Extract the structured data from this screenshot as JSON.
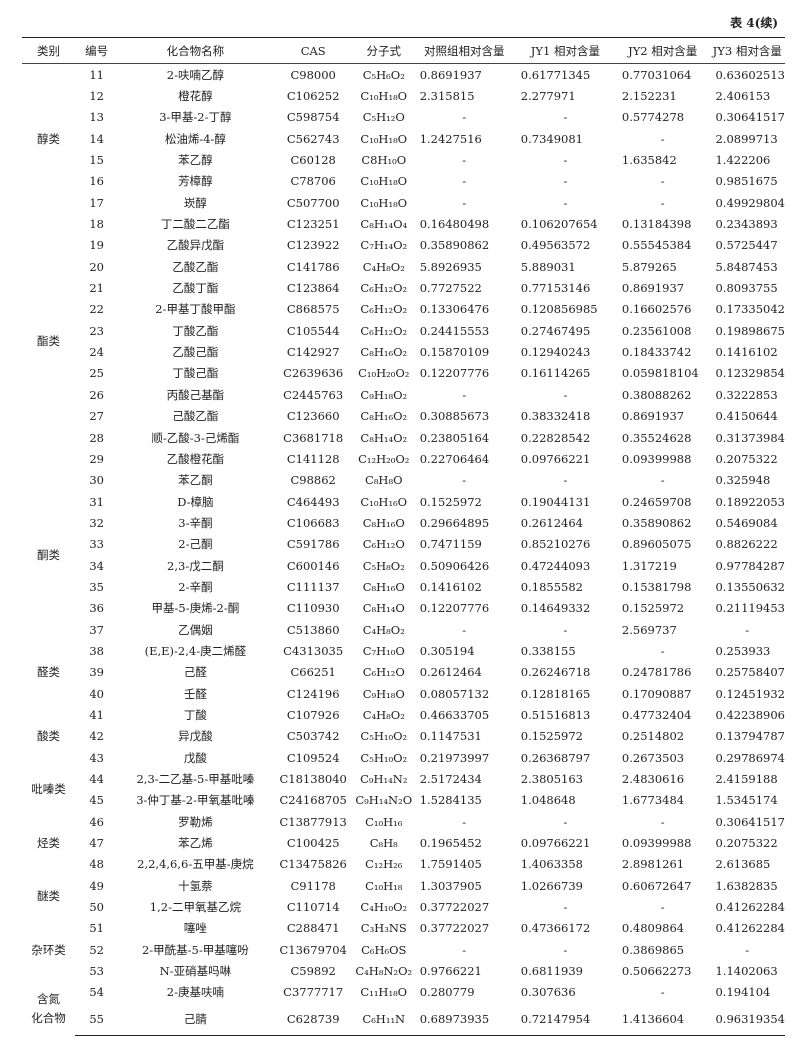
{
  "caption": "表 4(续)",
  "headers": [
    "类别",
    "编号",
    "化合物名称",
    "CAS",
    "分子式",
    "对照组相对含量",
    "JY1 相对含量",
    "JY2 相对含量",
    "JY3 相对含量"
  ],
  "categories": [
    {
      "label": "醇类",
      "rows": 7
    },
    {
      "label": "酯类",
      "rows": 12
    },
    {
      "label": "酮类",
      "rows": 8
    },
    {
      "label": "醛类",
      "rows": 3
    },
    {
      "label": "酸类",
      "rows": 3
    },
    {
      "label": "吡嗪类",
      "rows": 2
    },
    {
      "label": "烃类",
      "rows": 3
    },
    {
      "label": "醚类",
      "rows": 2
    },
    {
      "label": "杂环类",
      "rows": 3
    },
    {
      "label": "含氮\n化合物",
      "rows": 2
    }
  ],
  "rows": [
    [
      "11",
      "2-呋喃乙醇",
      "C98000",
      "C₅H₆O₂",
      "0.8691937",
      "0.61771345",
      "0.77031064",
      "0.63602513"
    ],
    [
      "12",
      "橙花醇",
      "C106252",
      "C₁₀H₁₈O",
      "2.315815",
      "2.277971",
      "2.152231",
      "2.406153"
    ],
    [
      "13",
      "3-甲基-2-丁醇",
      "C598754",
      "C₅H₁₂O",
      "-",
      "-",
      "0.5774278",
      "0.30641517"
    ],
    [
      "14",
      "松油烯-4-醇",
      "C562743",
      "C₁₀H₁₈O",
      "1.2427516",
      "0.7349081",
      "-",
      "2.0899713"
    ],
    [
      "15",
      "苯乙醇",
      "C60128",
      "C8H₁₀O",
      "-",
      "-",
      "1.635842",
      "1.422206"
    ],
    [
      "16",
      "芳樟醇",
      "C78706",
      "C₁₀H₁₈O",
      "-",
      "-",
      "-",
      "0.9851675"
    ],
    [
      "17",
      "崁醇",
      "C507700",
      "C₁₀H₁₈O",
      "-",
      "-",
      "-",
      "0.49929804"
    ],
    [
      "18",
      "丁二酸二乙酯",
      "C123251",
      "C₈H₁₄O₄",
      "0.16480498",
      "0.106207654",
      "0.13184398",
      "0.2343893"
    ],
    [
      "19",
      "乙酸异戊酯",
      "C123922",
      "C₇H₁₄O₂",
      "0.35890862",
      "0.49563572",
      "0.55545384",
      "0.5725447"
    ],
    [
      "20",
      "乙酸乙酯",
      "C141786",
      "C₄H₈O₂",
      "5.8926935",
      "5.889031",
      "5.879265",
      "5.8487453"
    ],
    [
      "21",
      "乙酸丁酯",
      "C123864",
      "C₆H₁₂O₂",
      "0.7727522",
      "0.77153146",
      "0.8691937",
      "0.8093755"
    ],
    [
      "22",
      "2-甲基丁酸甲酯",
      "C868575",
      "C₆H₁₂O₂",
      "0.13306476",
      "0.120856985",
      "0.16602576",
      "0.17335042"
    ],
    [
      "23",
      "丁酸乙酯",
      "C105544",
      "C₆H₁₂O₂",
      "0.24415553",
      "0.27467495",
      "0.23561008",
      "0.19898675"
    ],
    [
      "24",
      "乙酸己酯",
      "C142927",
      "C₈H₁₆O₂",
      "0.15870109",
      "0.12940243",
      "0.18433742",
      "0.1416102"
    ],
    [
      "25",
      "丁酸己酯",
      "C2639636",
      "C₁₀H₂₀O₂",
      "0.12207776",
      "0.16114265",
      "0.059818104",
      "0.12329854"
    ],
    [
      "26",
      "丙酸己基酯",
      "C2445763",
      "C₉H₁₈O₂",
      "-",
      "-",
      "0.38088262",
      "0.3222853"
    ],
    [
      "27",
      "己酸乙酯",
      "C123660",
      "C₈H₁₆O₂",
      "0.30885673",
      "0.38332418",
      "0.8691937",
      "0.4150644"
    ],
    [
      "28",
      "顺-乙酸-3-己烯酯",
      "C3681718",
      "C₈H₁₄O₂",
      "0.23805164",
      "0.22828542",
      "0.35524628",
      "0.31373984"
    ],
    [
      "29",
      "乙酸橙花酯",
      "C141128",
      "C₁₂H₂₀O₂",
      "0.22706464",
      "0.09766221",
      "0.09399988",
      "0.2075322"
    ],
    [
      "30",
      "苯乙酮",
      "C98862",
      "C₈H₈O",
      "-",
      "-",
      "-",
      "0.325948"
    ],
    [
      "31",
      "D-樟脑",
      "C464493",
      "C₁₀H₁₆O",
      "0.1525972",
      "0.19044131",
      "0.24659708",
      "0.18922053"
    ],
    [
      "32",
      "3-辛酮",
      "C106683",
      "C₈H₁₆O",
      "0.29664895",
      "0.2612464",
      "0.35890862",
      "0.5469084"
    ],
    [
      "33",
      "2-己酮",
      "C591786",
      "C₆H₁₂O",
      "0.7471159",
      "0.85210276",
      "0.89605075",
      "0.8826222"
    ],
    [
      "34",
      "2,3-戊二酮",
      "C600146",
      "C₅H₈O₂",
      "0.50906426",
      "0.47244093",
      "1.317219",
      "0.97784287"
    ],
    [
      "35",
      "2-辛酮",
      "C111137",
      "C₈H₁₆O",
      "0.1416102",
      "0.1855582",
      "0.15381798",
      "0.13550632"
    ],
    [
      "36",
      "甲基-5-庚烯-2-酮",
      "C110930",
      "C₈H₁₄O",
      "0.12207776",
      "0.14649332",
      "0.1525972",
      "0.21119453"
    ],
    [
      "37",
      "乙偶姻",
      "C513860",
      "C₄H₈O₂",
      "-",
      "-",
      "2.569737",
      "-"
    ],
    [
      "38",
      "(E,E)-2,4-庚二烯醛",
      "C4313035",
      "C₇H₁₀O",
      "0.305194",
      "0.338155",
      "-",
      "0.253933"
    ],
    [
      "39",
      "己醛",
      "C66251",
      "C₆H₁₂O",
      "0.2612464",
      "0.26246718",
      "0.24781786",
      "0.25758407"
    ],
    [
      "40",
      "壬醛",
      "C124196",
      "C₉H₁₈O",
      "0.08057132",
      "0.12818165",
      "0.17090887",
      "0.12451932"
    ],
    [
      "41",
      "丁酸",
      "C107926",
      "C₄H₈O₂",
      "0.46633705",
      "0.51516813",
      "0.47732404",
      "0.42238906"
    ],
    [
      "42",
      "异戊酸",
      "C503742",
      "C₅H₁₀O₂",
      "0.1147531",
      "0.1525972",
      "0.2514802",
      "0.13794787"
    ],
    [
      "43",
      "戊酸",
      "C109524",
      "C₅H₁₀O₂",
      "0.21973997",
      "0.26368797",
      "0.2673503",
      "0.29786974"
    ],
    [
      "44",
      "2,3-二乙基-5-甲基吡嗪",
      "C18138040",
      "C₉H₁₄N₂",
      "2.5172434",
      "2.3805163",
      "2.4830616",
      "2.4159188"
    ],
    [
      "45",
      "3-仲丁基-2-甲氧基吡嗪",
      "C24168705",
      "C₉H₁₄N₂O",
      "1.5284135",
      "1.048648",
      "1.6773484",
      "1.5345174"
    ],
    [
      "46",
      "罗勒烯",
      "C13877913",
      "C₁₀H₁₆",
      "-",
      "-",
      "-",
      "0.30641517"
    ],
    [
      "47",
      "苯乙烯",
      "C100425",
      "C₈H₈",
      "0.1965452",
      "0.09766221",
      "0.09399988",
      "0.2075322"
    ],
    [
      "48",
      "2,2,4,6,6-五甲基-庚烷",
      "C13475826",
      "C₁₂H₂₆",
      "1.7591405",
      "1.4063358",
      "2.8981261",
      "2.613685"
    ],
    [
      "49",
      "十氢萘",
      "C91178",
      "C₁₀H₁₈",
      "1.3037905",
      "1.0266739",
      "0.60672647",
      "1.6382835"
    ],
    [
      "50",
      "1,2-二甲氧基乙烷",
      "C110714",
      "C₄H₁₀O₂",
      "0.37722027",
      "-",
      "-",
      "0.41262284"
    ],
    [
      "51",
      "噻唑",
      "C288471",
      "C₃H₃NS",
      "0.37722027",
      "0.47366172",
      "0.4809864",
      "0.41262284"
    ],
    [
      "52",
      "2-甲酰基-5-甲基噻吩",
      "C13679704",
      "C₆H₆OS",
      "-",
      "-",
      "0.3869865",
      "-"
    ],
    [
      "53",
      "N-亚硝基吗啉",
      "C59892",
      "C₄H₈N₂O₂",
      "0.9766221",
      "0.6811939",
      "0.50662273",
      "1.1402063"
    ],
    [
      "54",
      "2-庚基呋喃",
      "C3777717",
      "C₁₁H₁₈O",
      "0.280779",
      "0.307636",
      "-",
      "0.194104"
    ],
    [
      "55",
      "己腈",
      "C628739",
      "C₆H₁₁N",
      "0.68973935",
      "0.72147954",
      "1.4136604",
      "0.96319354"
    ]
  ]
}
